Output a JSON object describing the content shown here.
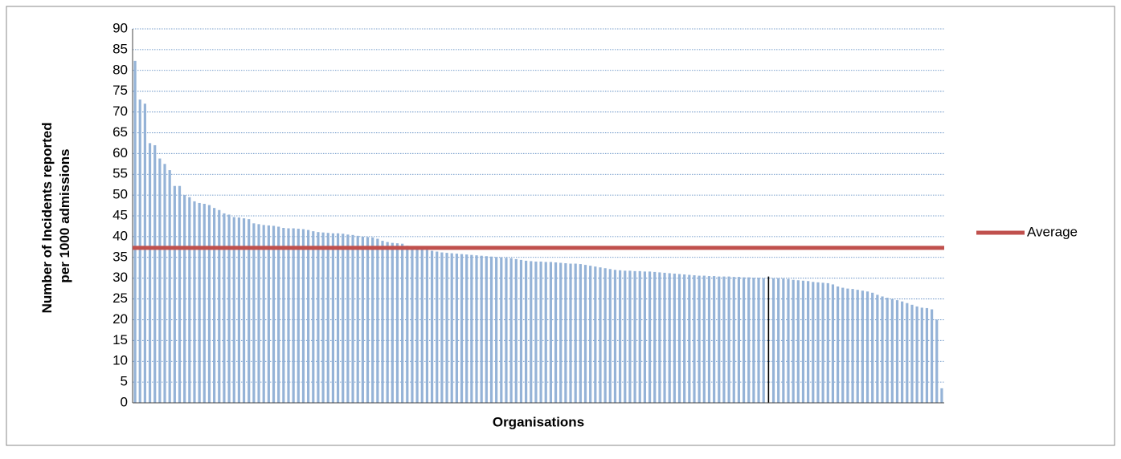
{
  "chart_data": {
    "type": "bar",
    "x_label": "Organisations",
    "y_label": "Number of Incidents reported per 1000 admissions",
    "categories": [
      null,
      null,
      null,
      null,
      null,
      null,
      null,
      null,
      null,
      null,
      null,
      null,
      null,
      null,
      null,
      null,
      null,
      null,
      null,
      null,
      null,
      null,
      null,
      null,
      null,
      null,
      null,
      null,
      null,
      null,
      null,
      null,
      null,
      null,
      null,
      null,
      null,
      null,
      null,
      null,
      null,
      null,
      null,
      null,
      null,
      null,
      null,
      null,
      null,
      null,
      null,
      null,
      null,
      null,
      null,
      null,
      null,
      null,
      null,
      null,
      null,
      null,
      null,
      null,
      null,
      null,
      null,
      null,
      null,
      null,
      null,
      null,
      null,
      null,
      null,
      null,
      null,
      null,
      null,
      null,
      null,
      null,
      null,
      null,
      null,
      null,
      null,
      null,
      null,
      null,
      null,
      null,
      null,
      null,
      null,
      null,
      null,
      null,
      null,
      null,
      null,
      null,
      null,
      null,
      null,
      null,
      null,
      null,
      null,
      null,
      null,
      null,
      null,
      null,
      null,
      null,
      null,
      null,
      null,
      null,
      null,
      null,
      null,
      null,
      null,
      null,
      null,
      null,
      null,
      null,
      null,
      null,
      null,
      null,
      null,
      null,
      null,
      null,
      null,
      null,
      null,
      null,
      null,
      null,
      null,
      null,
      null,
      null,
      null,
      null,
      null,
      null,
      null,
      null,
      null,
      null,
      null,
      null,
      null,
      null,
      null,
      null,
      null,
      null
    ],
    "values": [
      82.3,
      73,
      72,
      62.5,
      62,
      58.8,
      57.5,
      56,
      52.2,
      52.2,
      50,
      49.5,
      48.5,
      48.1,
      47.9,
      47.6,
      46.9,
      46.4,
      45.6,
      45.3,
      44.7,
      44.6,
      44.4,
      44.2,
      43.2,
      43,
      42.8,
      42.7,
      42.6,
      42.4,
      42.1,
      42,
      42,
      41.9,
      41.8,
      41.6,
      41.3,
      41.1,
      41,
      40.9,
      40.8,
      40.8,
      40.7,
      40.5,
      40.4,
      40.2,
      40,
      39.9,
      39.8,
      39.5,
      39,
      38.7,
      38.5,
      38.4,
      38.3,
      37.8,
      37.5,
      37.2,
      37,
      36.8,
      36.6,
      36.4,
      36.2,
      36.1,
      36,
      35.9,
      35.8,
      35.7,
      35.6,
      35.5,
      35.4,
      35.3,
      35.2,
      35.1,
      35,
      34.9,
      34.8,
      34.6,
      34.4,
      34.2,
      34.1,
      34,
      34,
      33.9,
      33.9,
      33.8,
      33.7,
      33.6,
      33.5,
      33.5,
      33.4,
      33.2,
      33,
      32.8,
      32.6,
      32.4,
      32.2,
      32,
      31.9,
      31.8,
      31.8,
      31.7,
      31.7,
      31.6,
      31.6,
      31.5,
      31.4,
      31.3,
      31.2,
      31.1,
      31,
      30.9,
      30.8,
      30.7,
      30.6,
      30.6,
      30.5,
      30.5,
      30.4,
      30.4,
      30.4,
      30.3,
      30.3,
      30.2,
      30.2,
      30.1,
      30.1,
      30,
      30.4,
      30,
      30,
      29.9,
      29.8,
      29.6,
      29.5,
      29.4,
      29.3,
      29.1,
      29,
      28.9,
      28.8,
      28.5,
      28,
      27.7,
      27.5,
      27.4,
      27.2,
      27,
      26.8,
      26.5,
      26,
      25.6,
      25.3,
      25,
      24.7,
      24.4,
      24,
      23.6,
      23.2,
      22.9,
      22.8,
      22.5,
      20,
      3.5
    ],
    "color": "#95b3d7",
    "highlight": {
      "index": 128,
      "color": "#000000"
    },
    "average": {
      "name": "Average",
      "value": 37.3,
      "color": "#c0504d"
    },
    "ylim": [
      0,
      90
    ],
    "yticks": [
      0,
      5,
      10,
      15,
      20,
      25,
      30,
      35,
      40,
      45,
      50,
      55,
      60,
      65,
      70,
      75,
      80,
      85,
      90
    ],
    "grid": true,
    "legend": "right"
  }
}
